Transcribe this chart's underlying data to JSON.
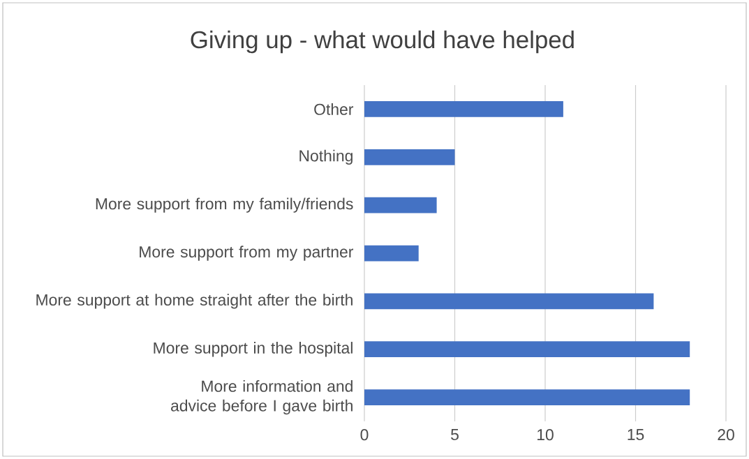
{
  "chart_data": {
    "type": "bar",
    "orientation": "horizontal",
    "title": "Giving up - what would have helped",
    "categories": [
      "Other",
      "Nothing",
      "More support from my family/friends",
      "More support from my partner",
      "More support at home straight after the birth",
      "More support in the hospital",
      "More information and advice before I gave birth"
    ],
    "values": [
      11,
      5,
      4,
      3,
      16,
      18,
      18
    ],
    "color": "#4472c4",
    "xlim": [
      0,
      20
    ],
    "xticks": [
      0,
      5,
      10,
      15,
      20
    ],
    "grid": "x"
  }
}
